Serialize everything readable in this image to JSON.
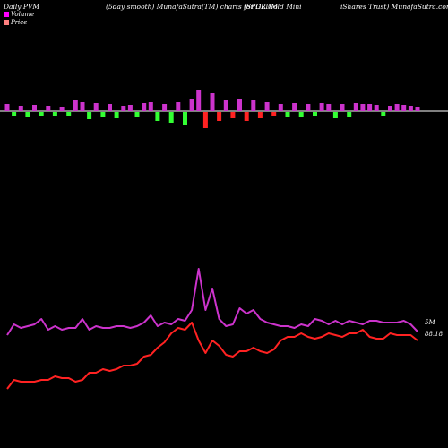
{
  "header": {
    "left": "Daily PVM",
    "mid": "(5day smooth) MunafaSutra(TM) charts for GLDM",
    "right": "(SPDR Gold Mini",
    "right2": "iShares Trust) MunafaSutra.com"
  },
  "legend": {
    "volume": "Volume",
    "price": "Price"
  },
  "labels": {
    "volume_right": "5M",
    "price_right": "88.18"
  },
  "colors": {
    "volume_line": "#cc33cc",
    "price_line": "#ff2222",
    "bar_up": "#cc33cc",
    "bar_down": "#33ff33",
    "bar_red": "#ff2222",
    "baseline": "#ffffff"
  },
  "chart_data": {
    "type": "line",
    "title": "(5day smooth) MunafaSutra(TM) charts for GLDM",
    "x_count": 61,
    "series": [
      {
        "name": "Volume",
        "values": [
          374,
          362,
          366,
          364,
          362,
          356,
          368,
          364,
          368,
          366,
          366,
          356,
          368,
          364,
          366,
          366,
          364,
          364,
          366,
          364,
          360,
          352,
          364,
          360,
          362,
          356,
          358,
          346,
          300,
          346,
          322,
          356,
          364,
          362,
          344,
          350,
          346,
          356,
          360,
          362,
          364,
          364,
          366,
          362,
          364,
          356,
          358,
          362,
          358,
          362,
          358,
          360,
          362,
          358,
          358,
          360,
          360,
          360,
          358,
          362,
          370
        ]
      },
      {
        "name": "Price",
        "values": [
          434,
          424,
          426,
          426,
          426,
          424,
          424,
          420,
          422,
          422,
          426,
          424,
          416,
          416,
          412,
          414,
          412,
          408,
          408,
          406,
          398,
          396,
          388,
          382,
          372,
          366,
          368,
          360,
          380,
          394,
          380,
          386,
          396,
          398,
          392,
          392,
          388,
          392,
          394,
          390,
          380,
          376,
          376,
          372,
          376,
          378,
          376,
          372,
          374,
          376,
          372,
          372,
          368,
          376,
          378,
          378,
          372,
          374,
          374,
          374,
          380
        ]
      }
    ],
    "volume_bars": [
      {
        "v": 8,
        "c": "up"
      },
      {
        "v": -5,
        "c": "down"
      },
      {
        "v": 6,
        "c": "up"
      },
      {
        "v": -6,
        "c": "down"
      },
      {
        "v": 7,
        "c": "up"
      },
      {
        "v": -5,
        "c": "down"
      },
      {
        "v": 6,
        "c": "up"
      },
      {
        "v": -4,
        "c": "down"
      },
      {
        "v": 5,
        "c": "up"
      },
      {
        "v": -5,
        "c": "down"
      },
      {
        "v": 12,
        "c": "up"
      },
      {
        "v": 10,
        "c": "up"
      },
      {
        "v": -8,
        "c": "down"
      },
      {
        "v": 9,
        "c": "up"
      },
      {
        "v": -6,
        "c": "down"
      },
      {
        "v": 8,
        "c": "up"
      },
      {
        "v": -7,
        "c": "down"
      },
      {
        "v": 6,
        "c": "up"
      },
      {
        "v": 7,
        "c": "up"
      },
      {
        "v": -6,
        "c": "down"
      },
      {
        "v": 9,
        "c": "up"
      },
      {
        "v": 10,
        "c": "up"
      },
      {
        "v": -10,
        "c": "down"
      },
      {
        "v": 8,
        "c": "up"
      },
      {
        "v": -12,
        "c": "down"
      },
      {
        "v": 10,
        "c": "up"
      },
      {
        "v": -14,
        "c": "down"
      },
      {
        "v": 14,
        "c": "up"
      },
      {
        "v": 24,
        "c": "up"
      },
      {
        "v": -18,
        "c": "red"
      },
      {
        "v": 20,
        "c": "up"
      },
      {
        "v": -10,
        "c": "red"
      },
      {
        "v": 12,
        "c": "up"
      },
      {
        "v": -7,
        "c": "red"
      },
      {
        "v": 13,
        "c": "up"
      },
      {
        "v": -10,
        "c": "red"
      },
      {
        "v": 12,
        "c": "up"
      },
      {
        "v": -7,
        "c": "red"
      },
      {
        "v": 10,
        "c": "up"
      },
      {
        "v": -5,
        "c": "red"
      },
      {
        "v": 8,
        "c": "up"
      },
      {
        "v": -6,
        "c": "down"
      },
      {
        "v": 9,
        "c": "up"
      },
      {
        "v": -6,
        "c": "down"
      },
      {
        "v": 8,
        "c": "up"
      },
      {
        "v": -5,
        "c": "down"
      },
      {
        "v": 9,
        "c": "up"
      },
      {
        "v": 8,
        "c": "up"
      },
      {
        "v": -7,
        "c": "down"
      },
      {
        "v": 8,
        "c": "up"
      },
      {
        "v": -6,
        "c": "down"
      },
      {
        "v": 9,
        "c": "up"
      },
      {
        "v": 8,
        "c": "up"
      },
      {
        "v": 8,
        "c": "up"
      },
      {
        "v": 7,
        "c": "up"
      },
      {
        "v": -5,
        "c": "down"
      },
      {
        "v": 6,
        "c": "up"
      },
      {
        "v": 8,
        "c": "up"
      },
      {
        "v": 7,
        "c": "up"
      },
      {
        "v": 6,
        "c": "up"
      },
      {
        "v": 5,
        "c": "up"
      }
    ]
  }
}
